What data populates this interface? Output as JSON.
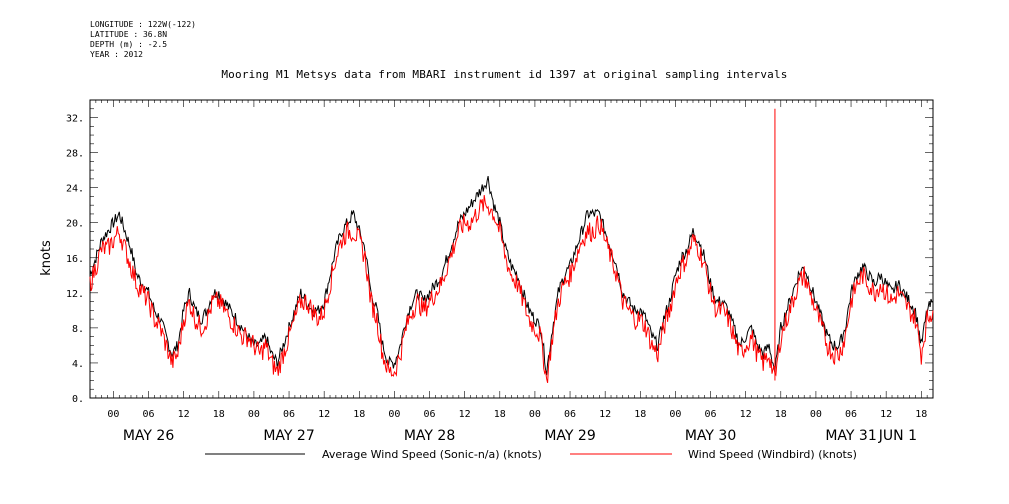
{
  "meta": {
    "longitude": "LONGITUDE : 122W(-122)",
    "latitude": "LATITUDE : 36.8N",
    "depth": "DEPTH (m) : -2.5",
    "year": "YEAR : 2012"
  },
  "chart_data": {
    "type": "line",
    "title": "Mooring M1 Metsys data from MBARI instrument id 1397 at original sampling intervals",
    "ylabel": "knots",
    "xlabel": "",
    "ylim": [
      0,
      34
    ],
    "yticks": [
      0,
      4,
      8,
      12,
      16,
      20,
      24,
      28,
      32
    ],
    "ytick_labels": [
      "0.",
      "4.",
      "8.",
      "12.",
      "16.",
      "20.",
      "24.",
      "28.",
      "32."
    ],
    "xlim_hours": [
      -4,
      140
    ],
    "hour_ticks": [
      0,
      6,
      12,
      18,
      24,
      30,
      36,
      42,
      48,
      54,
      60,
      66,
      72,
      78,
      84,
      90,
      96,
      102,
      108,
      114,
      120,
      126,
      132,
      138
    ],
    "hour_tick_labels": [
      "00",
      "06",
      "12",
      "18",
      "00",
      "06",
      "12",
      "18",
      "00",
      "06",
      "12",
      "18",
      "00",
      "06",
      "12",
      "18",
      "00",
      "06",
      "12",
      "18",
      "00",
      "06",
      "12",
      "18"
    ],
    "day_labels": [
      {
        "label": "MAY 26",
        "hour": 6
      },
      {
        "label": "MAY 27",
        "hour": 30
      },
      {
        "label": "MAY 28",
        "hour": 54
      },
      {
        "label": "MAY 29",
        "hour": 78
      },
      {
        "label": "MAY 30",
        "hour": 102
      },
      {
        "label": "MAY 31",
        "hour": 126
      },
      {
        "label": "JUN  1",
        "hour": 150
      }
    ],
    "grid": false,
    "legend_position": "bottom",
    "x_units": "hours from 2012-05-26 00:00",
    "series": [
      {
        "name": "Average Wind Speed (Sonic-n/a) (knots)",
        "color": "#000000",
        "x": [
          -4,
          -3,
          -2,
          -1,
          0,
          1,
          2,
          3,
          4,
          5,
          6,
          7,
          8,
          9,
          10,
          11,
          12,
          13,
          14,
          15,
          16,
          17,
          18,
          19,
          20,
          21,
          22,
          23,
          24,
          25,
          26,
          27,
          28,
          29,
          30,
          31,
          32,
          33,
          34,
          35,
          36,
          37,
          38,
          39,
          40,
          41,
          42,
          43,
          44,
          45,
          46,
          47,
          48,
          49,
          50,
          51,
          52,
          53,
          54,
          55,
          56,
          57,
          58,
          59,
          60,
          61,
          62,
          63,
          64,
          65,
          66,
          67,
          68,
          69,
          70,
          71,
          72,
          73,
          74,
          75,
          76,
          77,
          78,
          79,
          80,
          81,
          82,
          83,
          84,
          85,
          86,
          87,
          88,
          89,
          90,
          91,
          92,
          93,
          94,
          95,
          96,
          97,
          98,
          99,
          100,
          101,
          102,
          103,
          104,
          105,
          106,
          107,
          108,
          109,
          110,
          111,
          112,
          113,
          114,
          115,
          116,
          117,
          118,
          119,
          120,
          121,
          122,
          123,
          124,
          125,
          126,
          127,
          128,
          129,
          130,
          131,
          132,
          133,
          134,
          135,
          136,
          137,
          138,
          139,
          140
        ],
        "y": [
          14,
          16,
          18,
          19,
          20,
          21,
          19,
          17,
          14,
          13,
          12,
          10,
          9,
          7,
          5,
          6,
          10,
          12,
          10,
          9,
          10,
          12,
          12,
          11,
          10,
          9,
          8,
          7,
          6,
          6,
          7,
          5,
          4,
          6,
          8,
          10,
          12,
          11,
          10,
          10,
          11,
          14,
          17,
          19,
          20,
          21,
          19,
          17,
          12,
          10,
          6,
          4,
          4,
          6,
          9,
          11,
          12,
          11,
          12,
          13,
          14,
          16,
          18,
          20,
          21,
          22,
          23,
          24,
          25,
          22,
          20,
          17,
          15,
          14,
          12,
          10,
          9,
          8,
          3,
          8,
          12,
          14,
          15,
          17,
          19,
          21,
          21,
          21,
          19,
          17,
          15,
          12,
          11,
          10,
          10,
          9,
          7,
          6,
          9,
          11,
          14,
          16,
          17,
          19,
          18,
          16,
          13,
          11,
          11,
          10,
          8,
          6,
          7,
          8,
          6,
          5,
          6,
          3,
          8,
          10,
          12,
          14,
          15,
          13,
          11,
          9,
          7,
          6,
          6,
          8,
          12,
          14,
          15,
          14,
          13,
          14,
          13,
          12,
          13,
          12,
          11,
          10,
          6,
          10,
          11
        ]
      },
      {
        "name": "Wind Speed (Windbird) (knots)",
        "color": "#ff0000",
        "x": [
          -4,
          -3,
          -2,
          -1,
          0,
          1,
          2,
          3,
          4,
          5,
          6,
          7,
          8,
          9,
          10,
          11,
          12,
          13,
          14,
          15,
          16,
          17,
          18,
          19,
          20,
          21,
          22,
          23,
          24,
          25,
          26,
          27,
          28,
          29,
          30,
          31,
          32,
          33,
          34,
          35,
          36,
          37,
          38,
          39,
          40,
          41,
          42,
          43,
          44,
          45,
          46,
          47,
          48,
          49,
          50,
          51,
          52,
          53,
          54,
          55,
          56,
          57,
          58,
          59,
          60,
          61,
          62,
          63,
          64,
          65,
          66,
          67,
          68,
          69,
          70,
          71,
          72,
          73,
          74,
          75,
          76,
          77,
          78,
          79,
          80,
          81,
          82,
          83,
          84,
          85,
          86,
          87,
          88,
          89,
          90,
          91,
          92,
          93,
          94,
          95,
          96,
          97,
          98,
          99,
          100,
          101,
          102,
          103,
          104,
          105,
          106,
          107,
          108,
          109,
          110,
          111,
          112,
          113,
          114,
          115,
          116,
          117,
          118,
          119,
          120,
          121,
          122,
          123,
          124,
          125,
          126,
          127,
          128,
          129,
          130,
          131,
          132,
          133,
          134,
          135,
          136,
          137,
          138,
          139,
          140
        ],
        "y": [
          13,
          15,
          17,
          17,
          18,
          19,
          17,
          15,
          13,
          12,
          11,
          9,
          8,
          6,
          4,
          5,
          9,
          11,
          9,
          8,
          9,
          11,
          11,
          10,
          9,
          8,
          7,
          7,
          6,
          5,
          6,
          4,
          3,
          5,
          7,
          9,
          11,
          11,
          10,
          9,
          10,
          13,
          16,
          18,
          19,
          19,
          18,
          16,
          11,
          9,
          5,
          3,
          3,
          5,
          8,
          10,
          11,
          10,
          11,
          12,
          13,
          15,
          17,
          19,
          20,
          20,
          21,
          22,
          22,
          21,
          19,
          16,
          14,
          13,
          11,
          9,
          8,
          7,
          2,
          7,
          11,
          13,
          14,
          16,
          18,
          19,
          19,
          20,
          18,
          16,
          14,
          11,
          10,
          9,
          9,
          8,
          6,
          5,
          8,
          10,
          13,
          15,
          16,
          18,
          17,
          15,
          12,
          10,
          10,
          9,
          7,
          5,
          6,
          7,
          5,
          4,
          5,
          2,
          7,
          9,
          11,
          13,
          14,
          12,
          10,
          8,
          6,
          5,
          5,
          7,
          11,
          13,
          14,
          13,
          12,
          13,
          12,
          11,
          12,
          11,
          10,
          9,
          5,
          9,
          10
        ]
      }
    ],
    "annotations": [
      {
        "text": "spike",
        "series": 1,
        "x": 113,
        "y": 33
      }
    ]
  },
  "legend": {
    "black_label": "Average Wind Speed (Sonic-n/a) (knots)",
    "red_label": "Wind Speed (Windbird) (knots)"
  }
}
